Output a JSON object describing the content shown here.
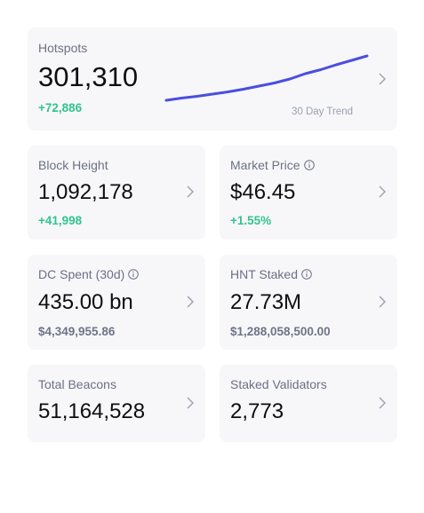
{
  "hotspots": {
    "label": "Hotspots",
    "value": "301,310",
    "change": "+72,886",
    "trend_label": "30 Day Trend",
    "trend_points": [
      0,
      2.5,
      4.5,
      7,
      9.5,
      12.5,
      16,
      19.5,
      24,
      30,
      34.5,
      40,
      45,
      50
    ]
  },
  "block_height": {
    "label": "Block Height",
    "value": "1,092,178",
    "change": "+41,998"
  },
  "market_price": {
    "label": "Market Price",
    "value": "$46.45",
    "change": "+1.55%"
  },
  "dc_spent": {
    "label": "DC Spent (30d)",
    "value": "435.00 bn",
    "sub": "$4,349,955.86"
  },
  "hnt_staked": {
    "label": "HNT Staked",
    "value": "27.73M",
    "sub": "$1,288,058,500.00"
  },
  "total_beacons": {
    "label": "Total Beacons",
    "value": "51,164,528"
  },
  "staked_validators": {
    "label": "Staked Validators",
    "value": "2,773"
  },
  "colors": {
    "accent_line": "#4a4ee0",
    "positive": "#32c48d",
    "card_bg": "#f7f7f9"
  },
  "icons": {
    "chevron": "chevron-right-icon",
    "info": "info-icon"
  }
}
